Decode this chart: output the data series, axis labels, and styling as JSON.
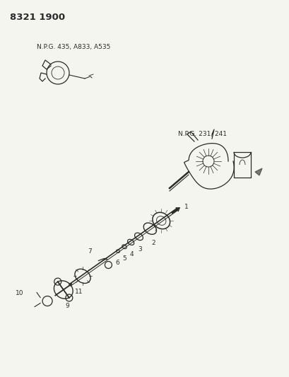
{
  "title_code": "8321 1900",
  "background_color": "#f5f5f0",
  "text_color": "#2a2a2a",
  "label_npg1": "N.P.G. 435, A833, A535",
  "label_npg2": "N.P.G. 231, 241",
  "fig_width": 4.1,
  "fig_height": 5.33,
  "dpi": 100
}
